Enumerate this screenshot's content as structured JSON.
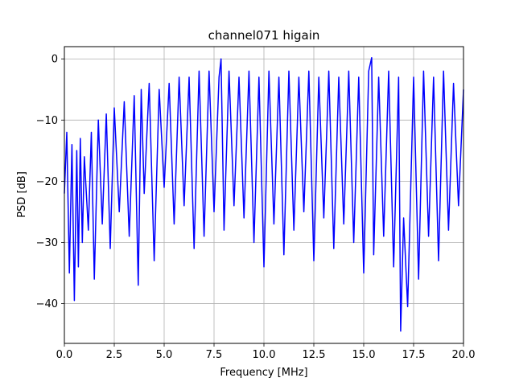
{
  "chart_data": {
    "type": "line",
    "title": "channel071 higain",
    "xlabel": "Frequency [MHz]",
    "ylabel": "PSD [dB]",
    "xlim": [
      0,
      20
    ],
    "ylim": [
      -46.5,
      2
    ],
    "xticks": [
      0.0,
      2.5,
      5.0,
      7.5,
      10.0,
      12.5,
      15.0,
      17.5,
      20.0
    ],
    "xtick_labels": [
      "0.0",
      "2.5",
      "5.0",
      "7.5",
      "10.0",
      "12.5",
      "15.0",
      "17.5",
      "20.0"
    ],
    "yticks": [
      0,
      -10,
      -20,
      -30,
      -40
    ],
    "ytick_labels": [
      "0",
      "−10",
      "−20",
      "−30",
      "−40"
    ],
    "grid": true,
    "series": [
      {
        "color": "#0000ff",
        "x": [
          0.0,
          0.12,
          0.25,
          0.38,
          0.5,
          0.62,
          0.7,
          0.8,
          0.9,
          1.0,
          1.2,
          1.35,
          1.5,
          1.7,
          1.9,
          2.1,
          2.3,
          2.5,
          2.75,
          3.0,
          3.25,
          3.5,
          3.7,
          3.85,
          4.0,
          4.25,
          4.5,
          4.75,
          5.0,
          5.25,
          5.5,
          5.75,
          6.0,
          6.25,
          6.5,
          6.75,
          7.0,
          7.25,
          7.5,
          7.75,
          7.85,
          8.0,
          8.25,
          8.5,
          8.75,
          9.0,
          9.25,
          9.5,
          9.75,
          10.0,
          10.25,
          10.5,
          10.75,
          11.0,
          11.25,
          11.5,
          11.75,
          12.0,
          12.25,
          12.5,
          12.75,
          13.0,
          13.25,
          13.5,
          13.75,
          14.0,
          14.25,
          14.5,
          14.75,
          15.0,
          15.25,
          15.4,
          15.5,
          15.75,
          16.0,
          16.25,
          16.5,
          16.75,
          16.85,
          17.0,
          17.2,
          17.5,
          17.75,
          18.0,
          18.25,
          18.5,
          18.75,
          19.0,
          19.25,
          19.5,
          19.75,
          20.0
        ],
        "y": [
          -22,
          -12,
          -35,
          -14,
          -39.5,
          -15,
          -34,
          -13,
          -30,
          -16,
          -28,
          -12,
          -36,
          -10,
          -27,
          -9,
          -31,
          -8,
          -25,
          -7,
          -29,
          -6,
          -37,
          -5,
          -22,
          -4,
          -33,
          -5,
          -21,
          -4,
          -27,
          -3,
          -24,
          -3,
          -31,
          -2,
          -29,
          -2,
          -25,
          -3,
          0,
          -28,
          -2,
          -24,
          -3,
          -26,
          -2,
          -30,
          -3,
          -34,
          -2,
          -27,
          -3,
          -32,
          -2,
          -28,
          -3,
          -25,
          -2,
          -33,
          -3,
          -26,
          -2,
          -31,
          -3,
          -27,
          -2,
          -30,
          -3,
          -35,
          -2,
          0.2,
          -32,
          -3,
          -29,
          -2,
          -34,
          -3,
          -44.5,
          -26,
          -40.5,
          -3,
          -36,
          -2,
          -29,
          -3,
          -33,
          -2,
          -28,
          -4,
          -24,
          -5
        ]
      }
    ]
  }
}
